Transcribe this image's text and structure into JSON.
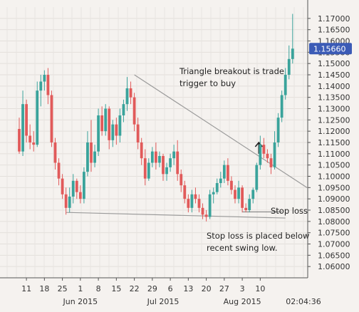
{
  "chart_data": {
    "type": "candlestick",
    "symbol_price_label": "1.15660",
    "last_price": 1.1566,
    "ylim": [
      1.055,
      1.175
    ],
    "y_ticks": [
      "1.06000",
      "1.06500",
      "1.07000",
      "1.07500",
      "1.08000",
      "1.08500",
      "1.09000",
      "1.09500",
      "1.10000",
      "1.10500",
      "1.11000",
      "1.11500",
      "1.12000",
      "1.12500",
      "1.13000",
      "1.13500",
      "1.14000",
      "1.14500",
      "1.15000",
      "1.15500",
      "1.16000",
      "1.16500",
      "1.17000"
    ],
    "x_day_ticks": [
      {
        "label": "11",
        "i": 2
      },
      {
        "label": "18",
        "i": 7
      },
      {
        "label": "25",
        "i": 12
      },
      {
        "label": "1",
        "i": 17
      },
      {
        "label": "8",
        "i": 22
      },
      {
        "label": "15",
        "i": 27
      },
      {
        "label": "22",
        "i": 32
      },
      {
        "label": "29",
        "i": 37
      },
      {
        "label": "6",
        "i": 42
      },
      {
        "label": "13",
        "i": 47
      },
      {
        "label": "20",
        "i": 52
      },
      {
        "label": "27",
        "i": 57
      },
      {
        "label": "3",
        "i": 62
      },
      {
        "label": "10",
        "i": 67
      }
    ],
    "x_month_labels": [
      {
        "label": "Jun 2015",
        "i": 17
      },
      {
        "label": "Jul 2015",
        "i": 40
      },
      {
        "label": "Aug 2015",
        "i": 62
      }
    ],
    "time_label": "02:04:36",
    "colors": {
      "up": "#3aa39b",
      "down": "#e15a5a",
      "trendline": "#9a9a9a",
      "price_tag": "#3b5bb6"
    },
    "candles": [
      [
        1.121,
        1.126,
        1.11,
        1.111
      ],
      [
        1.111,
        1.138,
        1.109,
        1.132
      ],
      [
        1.132,
        1.134,
        1.115,
        1.118
      ],
      [
        1.118,
        1.123,
        1.112,
        1.115
      ],
      [
        1.115,
        1.12,
        1.111,
        1.114
      ],
      [
        1.114,
        1.142,
        1.113,
        1.138
      ],
      [
        1.138,
        1.145,
        1.131,
        1.142
      ],
      [
        1.142,
        1.147,
        1.138,
        1.145
      ],
      [
        1.145,
        1.148,
        1.132,
        1.136
      ],
      [
        1.136,
        1.138,
        1.113,
        1.115
      ],
      [
        1.115,
        1.117,
        1.103,
        1.106
      ],
      [
        1.106,
        1.108,
        1.096,
        1.099
      ],
      [
        1.099,
        1.101,
        1.09,
        1.092
      ],
      [
        1.092,
        1.095,
        1.083,
        1.086
      ],
      [
        1.086,
        1.095,
        1.084,
        1.091
      ],
      [
        1.091,
        1.101,
        1.088,
        1.098
      ],
      [
        1.098,
        1.099,
        1.09,
        1.093
      ],
      [
        1.093,
        1.096,
        1.088,
        1.09
      ],
      [
        1.09,
        1.104,
        1.088,
        1.102
      ],
      [
        1.102,
        1.12,
        1.1,
        1.115
      ],
      [
        1.115,
        1.125,
        1.102,
        1.106
      ],
      [
        1.106,
        1.114,
        1.104,
        1.111
      ],
      [
        1.111,
        1.13,
        1.109,
        1.127
      ],
      [
        1.127,
        1.131,
        1.118,
        1.12
      ],
      [
        1.12,
        1.132,
        1.118,
        1.13
      ],
      [
        1.13,
        1.131,
        1.112,
        1.116
      ],
      [
        1.116,
        1.125,
        1.113,
        1.123
      ],
      [
        1.123,
        1.126,
        1.114,
        1.118
      ],
      [
        1.118,
        1.13,
        1.115,
        1.127
      ],
      [
        1.127,
        1.134,
        1.124,
        1.132
      ],
      [
        1.132,
        1.144,
        1.129,
        1.139
      ],
      [
        1.139,
        1.142,
        1.132,
        1.135
      ],
      [
        1.135,
        1.137,
        1.12,
        1.123
      ],
      [
        1.123,
        1.126,
        1.112,
        1.115
      ],
      [
        1.115,
        1.117,
        1.105,
        1.108
      ],
      [
        1.108,
        1.112,
        1.096,
        1.099
      ],
      [
        1.099,
        1.108,
        1.098,
        1.106
      ],
      [
        1.106,
        1.113,
        1.104,
        1.111
      ],
      [
        1.111,
        1.115,
        1.103,
        1.106
      ],
      [
        1.106,
        1.111,
        1.104,
        1.109
      ],
      [
        1.109,
        1.11,
        1.098,
        1.101
      ],
      [
        1.101,
        1.106,
        1.098,
        1.104
      ],
      [
        1.104,
        1.11,
        1.102,
        1.108
      ],
      [
        1.108,
        1.114,
        1.105,
        1.111
      ],
      [
        1.111,
        1.116,
        1.098,
        1.101
      ],
      [
        1.101,
        1.103,
        1.093,
        1.096
      ],
      [
        1.096,
        1.098,
        1.088,
        1.09
      ],
      [
        1.09,
        1.092,
        1.084,
        1.086
      ],
      [
        1.086,
        1.094,
        1.084,
        1.092
      ],
      [
        1.092,
        1.095,
        1.088,
        1.09
      ],
      [
        1.09,
        1.092,
        1.084,
        1.086
      ],
      [
        1.086,
        1.088,
        1.081,
        1.083
      ],
      [
        1.083,
        1.085,
        1.08,
        1.082
      ],
      [
        1.082,
        1.094,
        1.081,
        1.092
      ],
      [
        1.092,
        1.095,
        1.088,
        1.093
      ],
      [
        1.093,
        1.099,
        1.092,
        1.097
      ],
      [
        1.097,
        1.102,
        1.095,
        1.099
      ],
      [
        1.099,
        1.107,
        1.097,
        1.105
      ],
      [
        1.105,
        1.108,
        1.096,
        1.098
      ],
      [
        1.098,
        1.1,
        1.092,
        1.094
      ],
      [
        1.094,
        1.096,
        1.088,
        1.09
      ],
      [
        1.09,
        1.098,
        1.088,
        1.095
      ],
      [
        1.095,
        1.096,
        1.084,
        1.086
      ],
      [
        1.086,
        1.088,
        1.084,
        1.085
      ],
      [
        1.085,
        1.092,
        1.084,
        1.09
      ],
      [
        1.09,
        1.095,
        1.088,
        1.094
      ],
      [
        1.094,
        1.106,
        1.093,
        1.105
      ],
      [
        1.105,
        1.118,
        1.103,
        1.114
      ],
      [
        1.114,
        1.117,
        1.108,
        1.11
      ],
      [
        1.11,
        1.112,
        1.106,
        1.108
      ],
      [
        1.108,
        1.11,
        1.101,
        1.104
      ],
      [
        1.104,
        1.12,
        1.103,
        1.115
      ],
      [
        1.115,
        1.128,
        1.113,
        1.126
      ],
      [
        1.126,
        1.138,
        1.124,
        1.136
      ],
      [
        1.136,
        1.148,
        1.134,
        1.145
      ],
      [
        1.145,
        1.158,
        1.143,
        1.152
      ],
      [
        1.152,
        1.172,
        1.15,
        1.1566
      ]
    ],
    "upper_trendline": {
      "from": {
        "i": 32,
        "price": 1.145
      },
      "to": {
        "i": 80,
        "price": 1.095
      }
    },
    "lower_trendline": {
      "from": {
        "i": 13,
        "price": 1.084
      },
      "to": {
        "i": 74,
        "price": 1.0815
      }
    },
    "stop_loss_line": {
      "from": {
        "i": 62,
        "price": 1.0842
      },
      "to": {
        "i": 73,
        "price": 1.0842
      }
    },
    "breakout_arrow": {
      "i": 67,
      "from_price": 1.11,
      "to_price": 1.115
    }
  },
  "annotations": {
    "breakout_line1": "Triangle breakout is trade",
    "breakout_line2": "trigger to buy",
    "stop_label": "Stop loss",
    "stop_note_line1": "Stop loss is placed below",
    "stop_note_line2": "recent swing low."
  }
}
